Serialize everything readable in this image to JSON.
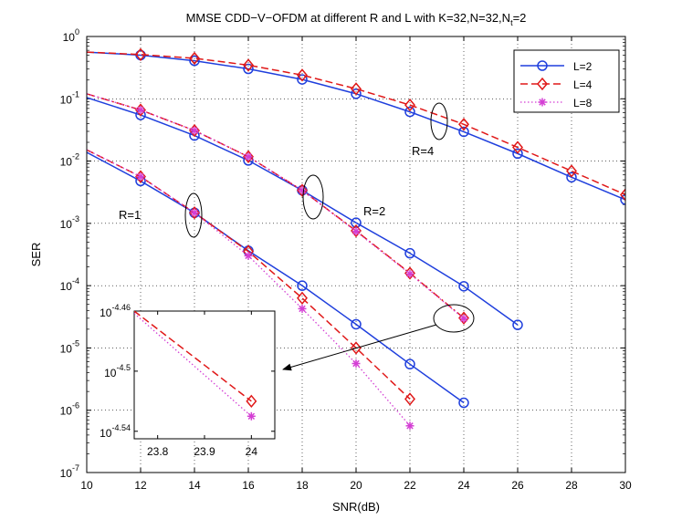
{
  "chart_data": {
    "type": "line",
    "title": "MMSE CDD−V−OFDM at different R and L with K=32,N=32,N",
    "title_sub": "t",
    "title_tail": "=2",
    "xlabel": "SNR(dB)",
    "ylabel": "SER",
    "xlim": [
      10,
      30
    ],
    "ylim_log10": [
      -7,
      0
    ],
    "x_ticks": [
      "10",
      "12",
      "14",
      "16",
      "18",
      "20",
      "22",
      "24",
      "26",
      "28",
      "30"
    ],
    "y_ticks_exp": [
      "-7",
      "-6",
      "-5",
      "-4",
      "-3",
      "-2",
      "-1",
      "0"
    ],
    "y_tick_base": "10",
    "grid": true,
    "legend_position": "top-right",
    "legend": [
      "L=2",
      "L=4",
      "L=8"
    ],
    "colors": {
      "l2": "#1f3fdd",
      "l4": "#e01818",
      "l8": "#d43fd4"
    },
    "annotations": [
      "R=4",
      "R=2",
      "R=1"
    ],
    "series": [
      {
        "name": "L=2",
        "group": "R=4",
        "style": "solid-circle",
        "x": [
          10,
          12,
          14,
          16,
          18,
          20,
          22,
          24,
          26,
          28,
          30
        ],
        "y_log10": [
          -0.25,
          -0.3,
          -0.39,
          -0.52,
          -0.69,
          -0.92,
          -1.21,
          -1.53,
          -1.88,
          -2.26,
          -2.62
        ]
      },
      {
        "name": "L=4",
        "group": "R=4",
        "style": "dashed-diamond",
        "x": [
          10,
          12,
          14,
          16,
          18,
          20,
          22,
          24,
          26,
          28,
          30
        ],
        "y_log10": [
          -0.25,
          -0.29,
          -0.35,
          -0.46,
          -0.62,
          -0.84,
          -1.1,
          -1.41,
          -1.78,
          -2.16,
          -2.54
        ]
      },
      {
        "name": "L=2",
        "group": "R=2",
        "style": "solid-circle",
        "x": [
          10,
          12,
          14,
          16,
          18,
          20,
          22,
          24,
          26
        ],
        "y_log10": [
          -0.98,
          -1.26,
          -1.59,
          -1.99,
          -2.47,
          -2.99,
          -3.48,
          -4.01,
          -4.63
        ]
      },
      {
        "name": "L=4",
        "group": "R=2",
        "style": "dashdot-diamond",
        "x": [
          10,
          12,
          14,
          16,
          18,
          20,
          22,
          24
        ],
        "y_log10": [
          -0.92,
          -1.18,
          -1.51,
          -1.93,
          -2.47,
          -3.12,
          -3.8,
          -4.52
        ]
      },
      {
        "name": "L=8",
        "group": "R=2",
        "style": "dotted-star",
        "x": [
          10,
          12,
          14,
          16,
          18,
          20,
          22,
          24
        ],
        "y_log10": [
          -0.92,
          -1.18,
          -1.51,
          -1.93,
          -2.47,
          -3.13,
          -3.81,
          -4.53
        ]
      },
      {
        "name": "L=2",
        "group": "R=1",
        "style": "solid-circle",
        "x": [
          10,
          12,
          14,
          16,
          18,
          20,
          22,
          24
        ],
        "y_log10": [
          -1.86,
          -2.32,
          -2.83,
          -3.44,
          -4.0,
          -4.62,
          -5.26,
          -5.88
        ]
      },
      {
        "name": "L=4",
        "group": "R=1",
        "style": "dashed-diamond",
        "x": [
          10,
          12,
          14,
          16,
          18,
          20,
          22
        ],
        "y_log10": [
          -1.82,
          -2.25,
          -2.83,
          -3.45,
          -4.2,
          -5.0,
          -5.82
        ]
      },
      {
        "name": "L=8",
        "group": "R=1",
        "style": "dotted-star",
        "x": [
          10,
          12,
          14,
          16,
          18,
          20,
          22
        ],
        "y_log10": [
          -1.82,
          -2.25,
          -2.83,
          -3.52,
          -4.37,
          -5.25,
          -6.25
        ]
      }
    ],
    "inset": {
      "xlim": [
        23.75,
        24.05
      ],
      "ylim_log10": [
        -4.545,
        -4.46
      ],
      "x_ticks": [
        "23.8",
        "23.9",
        "24"
      ],
      "y_ticks_exp": [
        "-4.46",
        "-4.5",
        "-4.54"
      ],
      "series": [
        {
          "name": "L=4",
          "style": "dashed-diamond",
          "x": [
            23.75,
            24
          ],
          "y_log10": [
            -4.46,
            -4.52
          ]
        },
        {
          "name": "L=8",
          "style": "dotted-star",
          "x": [
            23.75,
            24
          ],
          "y_log10": [
            -4.4615,
            -4.53
          ]
        }
      ]
    }
  }
}
